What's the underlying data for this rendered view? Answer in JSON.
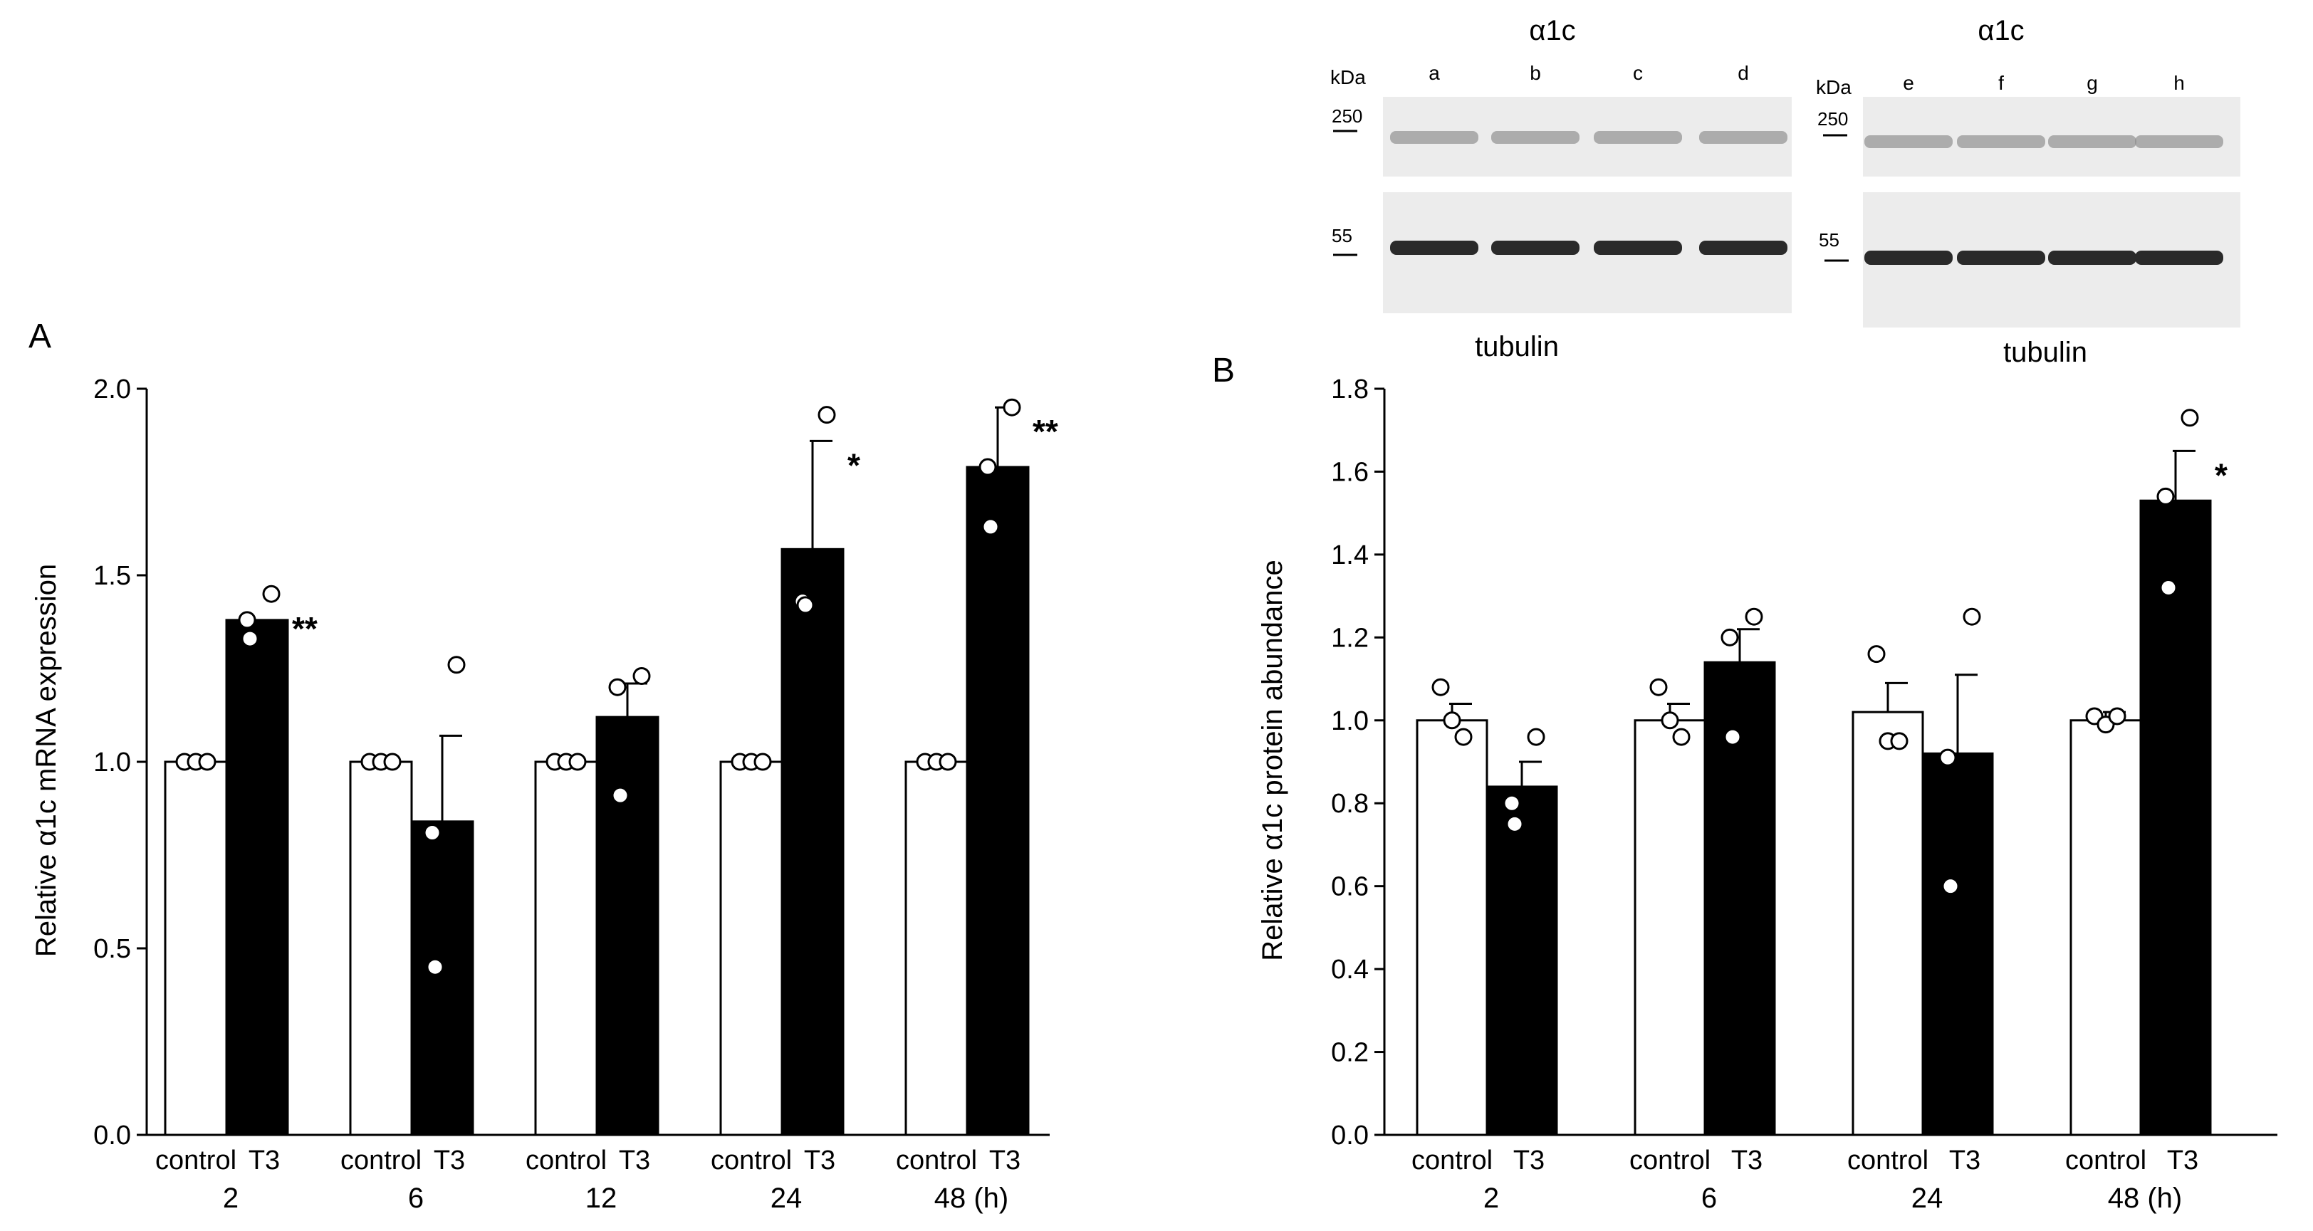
{
  "chart_data": [
    {
      "panel_label": "A",
      "type": "bar",
      "title": "",
      "ylabel": "Relative α1c mRNA expression",
      "ylim": [
        0,
        2.0
      ],
      "yticks": [
        "0.0",
        "0.5",
        "1.0",
        "1.5",
        "2.0"
      ],
      "group_labels": [
        "2",
        "6",
        "12",
        "24",
        "48 (h)"
      ],
      "bar_labels": [
        "control",
        "T3"
      ],
      "series": [
        {
          "name": "control",
          "fill": "#ffffff",
          "values": [
            1.0,
            1.0,
            1.0,
            1.0,
            1.0
          ],
          "errors": [
            0,
            0,
            0,
            0,
            0
          ]
        },
        {
          "name": "T3",
          "fill": "#000000",
          "values": [
            1.38,
            0.84,
            1.12,
            1.57,
            1.79
          ],
          "errors": [
            0.0,
            0.23,
            0.09,
            0.29,
            0.16
          ]
        }
      ],
      "points": {
        "control": [
          [
            1.0,
            1.0,
            1.0
          ],
          [
            1.0,
            1.0,
            1.0
          ],
          [
            1.0,
            1.0,
            1.0
          ],
          [
            1.0,
            1.0,
            1.0
          ],
          [
            1.0,
            1.0,
            1.0
          ]
        ],
        "T3": [
          [
            1.45,
            1.38,
            1.33
          ],
          [
            1.26,
            0.81,
            0.45
          ],
          [
            1.23,
            1.2,
            0.91
          ],
          [
            1.93,
            1.43,
            1.42
          ],
          [
            1.95,
            1.79,
            1.63
          ]
        ]
      },
      "significance": [
        "**",
        "",
        "",
        "*",
        "**"
      ]
    },
    {
      "panel_label": "B",
      "type": "bar",
      "title": "",
      "ylabel": "Relative α1c protein abundance",
      "ylim": [
        0,
        1.8
      ],
      "yticks": [
        "0.0",
        "0.2",
        "0.4",
        "0.6",
        "0.8",
        "1.0",
        "1.2",
        "1.4",
        "1.6",
        "1.8"
      ],
      "group_labels": [
        "2",
        "6",
        "24",
        "48 (h)"
      ],
      "bar_labels": [
        "control",
        "T3"
      ],
      "series": [
        {
          "name": "control",
          "fill": "#ffffff",
          "values": [
            1.0,
            1.0,
            1.02,
            1.0
          ],
          "errors": [
            0.04,
            0.04,
            0.07,
            0.02
          ]
        },
        {
          "name": "T3",
          "fill": "#000000",
          "values": [
            0.84,
            1.14,
            0.92,
            1.53
          ],
          "errors": [
            0.06,
            0.08,
            0.19,
            0.12
          ]
        }
      ],
      "points": {
        "control": [
          [
            1.08,
            1.0,
            0.96
          ],
          [
            1.08,
            1.0,
            0.96
          ],
          [
            1.16,
            0.95,
            0.95
          ],
          [
            1.01,
            0.99,
            1.01
          ]
        ],
        "T3": [
          [
            0.96,
            0.8,
            0.75
          ],
          [
            1.25,
            1.2,
            0.96
          ],
          [
            1.25,
            0.91,
            0.6
          ],
          [
            1.73,
            1.54,
            1.32
          ]
        ]
      },
      "significance": [
        "",
        "",
        "",
        "*"
      ]
    }
  ],
  "blots": {
    "kda_label": "kDa",
    "target_label": "α1c",
    "loading_label": "tubulin",
    "marker_high": "250",
    "marker_low": "55",
    "lanes_left": [
      "a",
      "b",
      "c",
      "d"
    ],
    "lanes_right": [
      "e",
      "f",
      "g",
      "h"
    ],
    "band_color": "#2a2a2a",
    "membrane_color": "#ececec"
  }
}
